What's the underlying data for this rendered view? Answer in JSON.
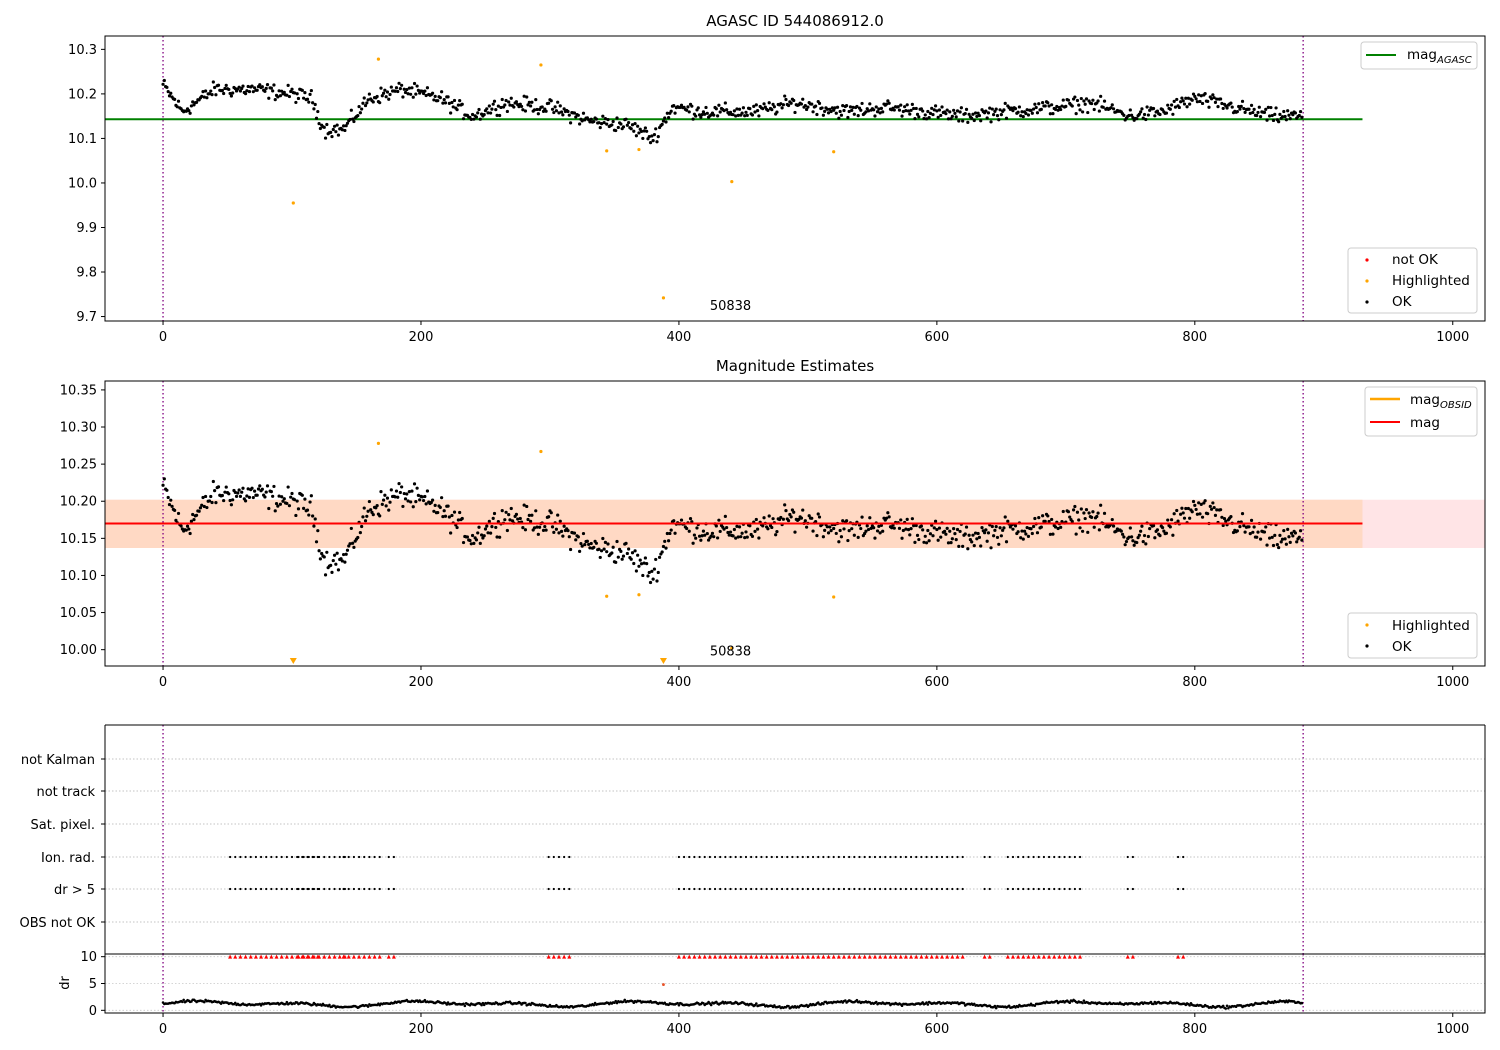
{
  "chart_data": [
    {
      "type": "scatter",
      "title": "AGASC ID 544086912.0",
      "xlim": [
        -45,
        1025
      ],
      "ylim": [
        9.69,
        10.33
      ],
      "xticks": [
        "0",
        "200",
        "400",
        "600",
        "800",
        "1000"
      ],
      "yticks": [
        "9.7",
        "9.8",
        "9.9",
        "10.0",
        "10.1",
        "10.2",
        "10.3"
      ],
      "vlines_x": [
        0,
        884
      ],
      "hline": {
        "y": 10.143,
        "x0": -45,
        "x1": 930,
        "color": "#008000"
      },
      "annotation": {
        "text": "50838",
        "x": 440,
        "y": 9.715
      },
      "legend_top": {
        "entries": [
          {
            "name": "mag",
            "sub": "AGASC",
            "color": "#008000"
          }
        ],
        "placement": "top-right"
      },
      "legend_bottom": {
        "entries": [
          {
            "name": "not OK",
            "color": "#ff0000"
          },
          {
            "name": "Highlighted",
            "color": "#ffa500"
          },
          {
            "name": "OK",
            "color": "#000000"
          }
        ],
        "placement": "bottom-right"
      },
      "highlighted_points": [
        {
          "x": 101,
          "y": 9.955
        },
        {
          "x": 167,
          "y": 10.278
        },
        {
          "x": 293,
          "y": 10.265
        },
        {
          "x": 344,
          "y": 10.072
        },
        {
          "x": 369,
          "y": 10.075
        },
        {
          "x": 388,
          "y": 9.742
        },
        {
          "x": 441,
          "y": 10.003
        },
        {
          "x": 520,
          "y": 10.07
        }
      ],
      "ok_series_profile": {
        "x": [
          0,
          883
        ],
        "anchors": [
          [
            0,
            10.22
          ],
          [
            15,
            10.16
          ],
          [
            40,
            10.21
          ],
          [
            70,
            10.21
          ],
          [
            100,
            10.2
          ],
          [
            115,
            10.19
          ],
          [
            125,
            10.12
          ],
          [
            140,
            10.12
          ],
          [
            160,
            10.19
          ],
          [
            185,
            10.21
          ],
          [
            215,
            10.19
          ],
          [
            240,
            10.15
          ],
          [
            265,
            10.18
          ],
          [
            300,
            10.17
          ],
          [
            330,
            10.14
          ],
          [
            360,
            10.13
          ],
          [
            380,
            10.1
          ],
          [
            395,
            10.17
          ],
          [
            420,
            10.16
          ],
          [
            460,
            10.16
          ],
          [
            490,
            10.18
          ],
          [
            530,
            10.16
          ],
          [
            560,
            10.17
          ],
          [
            590,
            10.16
          ],
          [
            620,
            10.15
          ],
          [
            650,
            10.16
          ],
          [
            690,
            10.17
          ],
          [
            720,
            10.18
          ],
          [
            750,
            10.15
          ],
          [
            775,
            10.16
          ],
          [
            800,
            10.19
          ],
          [
            830,
            10.17
          ],
          [
            860,
            10.15
          ],
          [
            883,
            10.15
          ]
        ],
        "spread": 0.025
      }
    },
    {
      "type": "scatter",
      "title": "Magnitude Estimates",
      "xlim": [
        -45,
        1025
      ],
      "ylim": [
        9.978,
        10.362
      ],
      "xticks": [
        "0",
        "200",
        "400",
        "600",
        "800",
        "1000"
      ],
      "yticks": [
        "10.00",
        "10.05",
        "10.10",
        "10.15",
        "10.20",
        "10.25",
        "10.30",
        "10.35"
      ],
      "vlines_x": [
        0,
        884
      ],
      "band_outer": {
        "y0": 10.137,
        "y1": 10.202,
        "color": "#ffe4e6"
      },
      "band_inner": {
        "y0": 10.137,
        "y1": 10.202,
        "x0": -45,
        "x1": 930,
        "color": "#ffd9c4"
      },
      "hline_mag": {
        "y": 10.17,
        "x0": -45,
        "x1": 930,
        "color": "#ff0000"
      },
      "annotation": {
        "text": "50838",
        "x": 440,
        "y": 9.992
      },
      "legend_top": {
        "entries": [
          {
            "name": "mag",
            "sub": "OBSID",
            "color": "#ffa500"
          },
          {
            "name": "mag",
            "color": "#ff0000"
          }
        ],
        "placement": "top-right"
      },
      "legend_bottom": {
        "entries": [
          {
            "name": "Highlighted",
            "color": "#ffa500"
          },
          {
            "name": "OK",
            "color": "#000000"
          }
        ],
        "placement": "bottom-right"
      },
      "highlighted_points": [
        {
          "x": 167,
          "y": 10.278
        },
        {
          "x": 293,
          "y": 10.267
        },
        {
          "x": 344,
          "y": 10.072
        },
        {
          "x": 369,
          "y": 10.074
        },
        {
          "x": 441,
          "y": 10.002
        },
        {
          "x": 520,
          "y": 10.071
        }
      ],
      "offscale_markers_x": [
        101,
        388
      ]
    },
    {
      "type": "scatter",
      "title": "",
      "xlim": [
        -45,
        1025
      ],
      "categories": [
        "not Kalman",
        "not track",
        "Sat. pixel.",
        "Ion. rad.",
        "dr > 5",
        "OBS not OK"
      ],
      "vlines_x": [
        0,
        884
      ],
      "flag_ranges": [
        [
          52,
          120
        ],
        [
          105,
          142
        ],
        [
          140,
          170
        ],
        [
          175,
          182
        ],
        [
          299,
          316
        ],
        [
          400,
          622
        ],
        [
          637,
          642
        ],
        [
          655,
          712
        ],
        [
          748,
          752
        ],
        [
          787,
          792
        ]
      ],
      "flag_dot_step": 4
    },
    {
      "type": "scatter",
      "ylabel": "dr",
      "xlim": [
        -45,
        1025
      ],
      "ylim": [
        -0.5,
        10.5
      ],
      "xticks": [
        "0",
        "200",
        "400",
        "600",
        "800",
        "1000"
      ],
      "yticks": [
        "0",
        "5",
        "10"
      ],
      "vlines_x": [
        0,
        884
      ],
      "clipped_marker_y": 10,
      "highlighted_points": [
        {
          "x": 388,
          "y": 4.8
        }
      ]
    }
  ]
}
